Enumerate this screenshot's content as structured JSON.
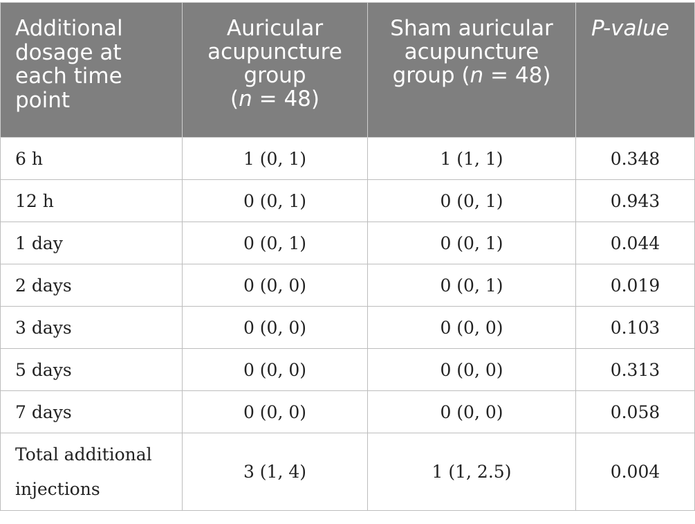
{
  "header": {
    "col1": "Additional dosage at each time point",
    "col2_line1": "Auricular acupuncture group",
    "col2_n_var": "n",
    "col2_n_val": " = 48)",
    "col3_line1": "Sham auricular acupuncture group (",
    "col3_n_var": "n",
    "col3_n_val": " = 48)",
    "col4": "P-value"
  },
  "rows": [
    {
      "label": "6 h",
      "a": "1 (0, 1)",
      "b": "1 (1, 1)",
      "p": "0.348"
    },
    {
      "label": "12 h",
      "a": "0 (0, 1)",
      "b": "0 (0, 1)",
      "p": "0.943"
    },
    {
      "label": "1 day",
      "a": "0 (0, 1)",
      "b": "0 (0, 1)",
      "p": "0.044"
    },
    {
      "label": "2 days",
      "a": "0 (0, 0)",
      "b": "0 (0, 1)",
      "p": "0.019"
    },
    {
      "label": "3 days",
      "a": "0 (0, 0)",
      "b": "0 (0, 0)",
      "p": "0.103"
    },
    {
      "label": "5 days",
      "a": "0 (0, 0)",
      "b": "0 (0, 0)",
      "p": "0.313"
    },
    {
      "label": "7 days",
      "a": "0 (0, 0)",
      "b": "0 (0, 0)",
      "p": "0.058"
    },
    {
      "label": "Total additional injections",
      "a": "3 (1, 4)",
      "b": "1 (1, 2.5)",
      "p": "0.004"
    }
  ]
}
